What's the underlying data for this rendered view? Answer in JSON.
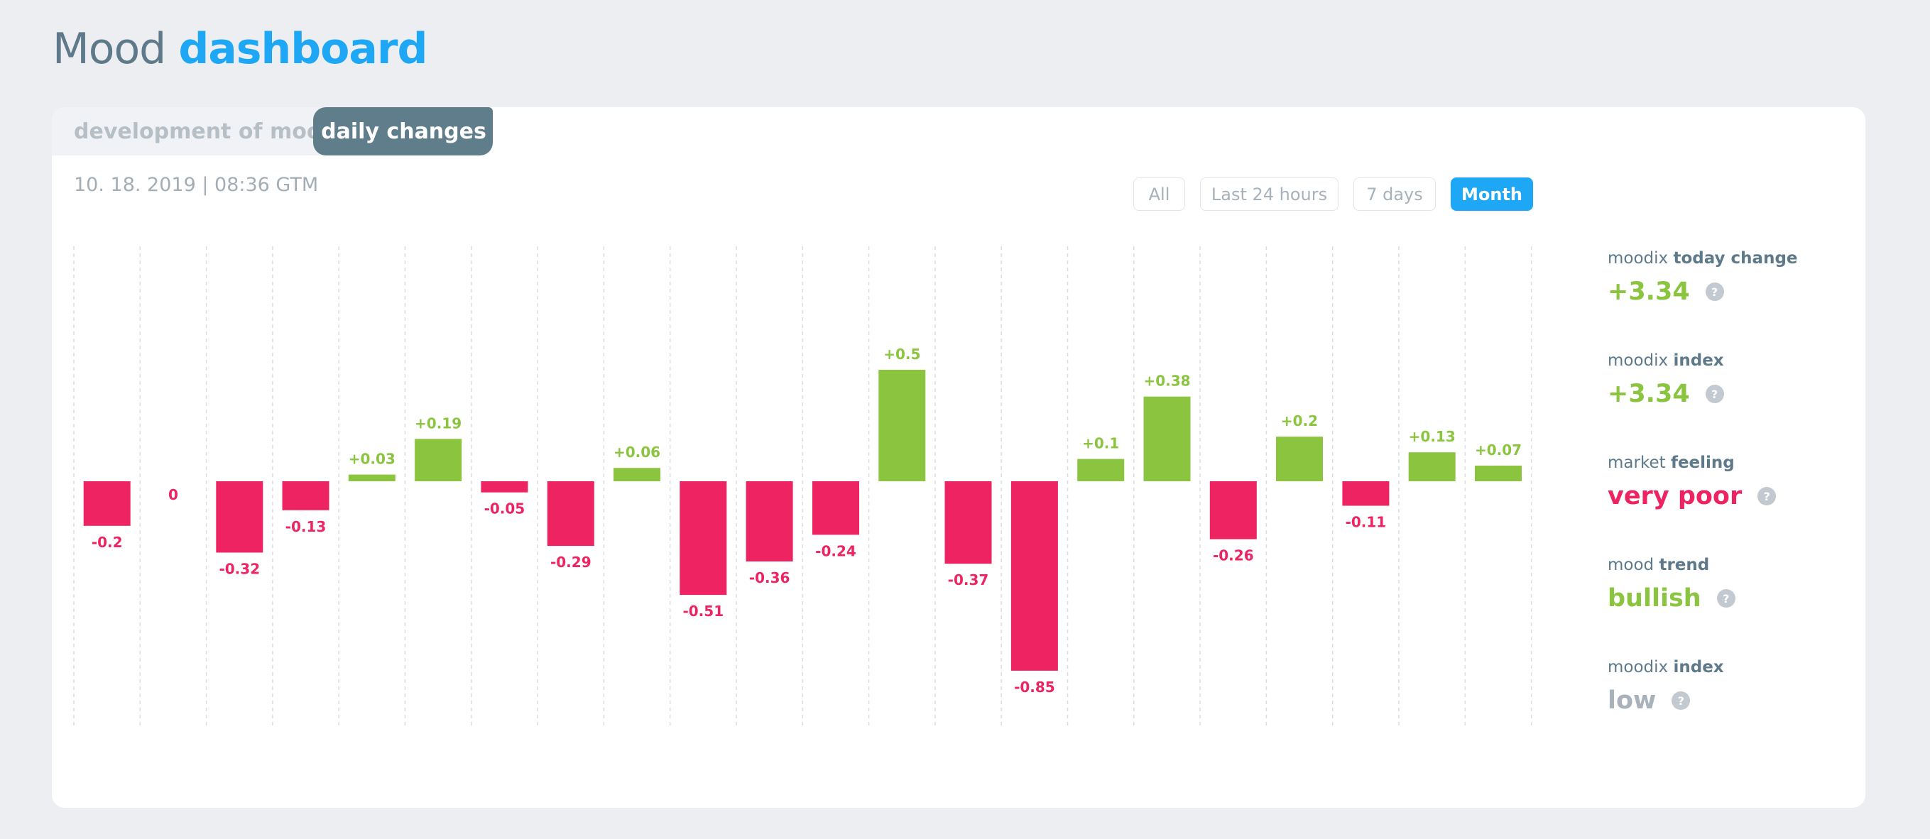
{
  "page_title": {
    "prefix": "Mood",
    "accent": "dashboard"
  },
  "tabs": [
    {
      "label": "development of mood",
      "active": false
    },
    {
      "label": "daily changes",
      "active": true
    }
  ],
  "timestamp": "10. 18. 2019 | 08:36 GTM",
  "range_buttons": [
    {
      "label": "All",
      "active": false
    },
    {
      "label": "Last 24 hours",
      "active": false
    },
    {
      "label": "7 days",
      "active": false
    },
    {
      "label": "Month",
      "active": true
    }
  ],
  "colors": {
    "positive": "#8BC540",
    "negative": "#EE2462",
    "neutral": "#A9B2BA",
    "accent": "#1EA7F5",
    "tab_active": "#607D8B"
  },
  "stats": [
    {
      "label_plain": "moodix ",
      "label_bold": "today change",
      "value": "+3.34",
      "value_color": "#8BC540",
      "icon": "help-icon"
    },
    {
      "label_plain": "moodix ",
      "label_bold": "index",
      "value": "+3.34",
      "value_color": "#8BC540",
      "icon": "help-icon"
    },
    {
      "label_plain": "market ",
      "label_bold": "feeling",
      "value": "very poor",
      "value_color": "#EE2462",
      "icon": "help-icon"
    },
    {
      "label_plain": "mood ",
      "label_bold": "trend",
      "value": "bullish",
      "value_color": "#8BC540",
      "icon": "help-icon"
    },
    {
      "label_plain": "moodix ",
      "label_bold": "index",
      "value": "low",
      "value_color": "#A9B2BA",
      "icon": "help-icon"
    }
  ],
  "chart_data": {
    "type": "bar",
    "grid": "vertical dashed",
    "values": [
      -0.2,
      0,
      -0.32,
      -0.13,
      0.03,
      0.19,
      -0.05,
      -0.29,
      0.06,
      -0.51,
      -0.36,
      -0.24,
      0.5,
      -0.37,
      -0.85,
      0.1,
      0.38,
      -0.26,
      0.2,
      -0.11,
      0.13,
      0.07
    ],
    "labels": [
      "-0.2",
      "0",
      "-0.32",
      "-0.13",
      "+0.03",
      "+0.19",
      "-0.05",
      "-0.29",
      "+0.06",
      "-0.51",
      "-0.36",
      "-0.24",
      "+0.5",
      "-0.37",
      "-0.85",
      "+0.1",
      "+0.38",
      "-0.26",
      "+0.2",
      "-0.11",
      "+0.13",
      "+0.07"
    ]
  }
}
